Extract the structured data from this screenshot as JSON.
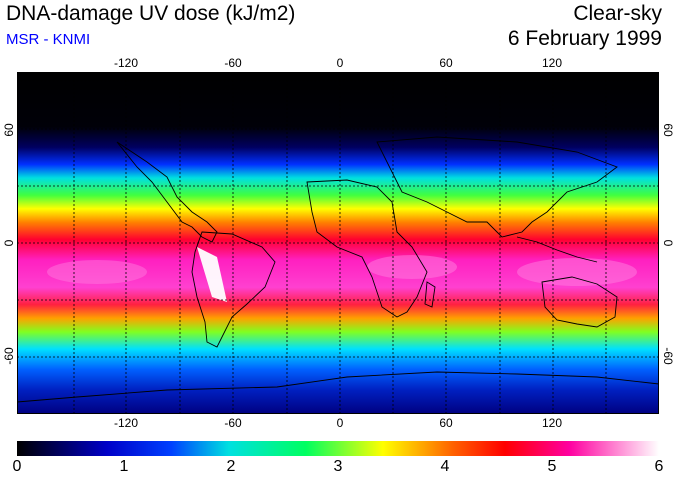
{
  "header": {
    "title": "DNA-damage UV dose (kJ/m2)",
    "subtitle": "MSR - KNMI",
    "condition": "Clear-sky",
    "date": "6 February 1999"
  },
  "map": {
    "lon_ticks": [
      "-120",
      "-60",
      "0",
      "60",
      "120"
    ],
    "lat_ticks": [
      "60",
      "0",
      "-60"
    ]
  },
  "colorbar": {
    "labels": [
      "0",
      "1",
      "2",
      "3",
      "4",
      "5",
      "6"
    ],
    "colors": [
      "#000000",
      "#0000c8",
      "#00a0ff",
      "#00ff80",
      "#ffff00",
      "#ff0000",
      "#ff00c0",
      "#ffffff"
    ]
  }
}
